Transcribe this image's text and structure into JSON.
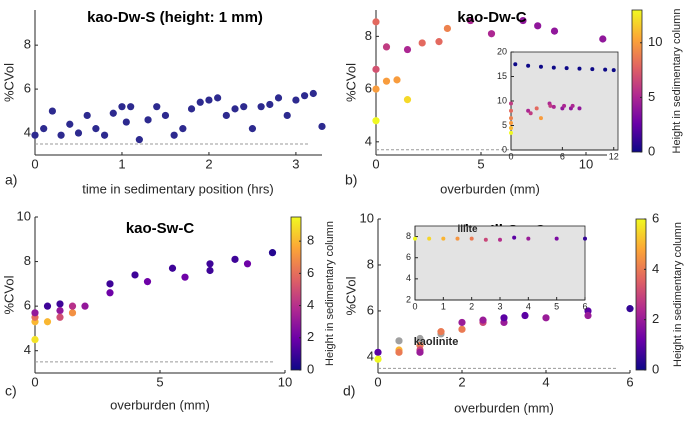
{
  "chart_data": [
    {
      "type": "scatter",
      "panel_label": "a)",
      "title": "kao-Dw-S (height: 1 mm)",
      "xlabel": "time in sedimentary position (hrs)",
      "ylabel": "%CVol",
      "xlim": [
        0,
        3.3
      ],
      "ylim": [
        3,
        9.6
      ],
      "xticks": [
        0,
        1,
        2,
        3
      ],
      "yticks": [
        4,
        6,
        8
      ],
      "reference_line": 3.5,
      "series": [
        {
          "color": "#2d2a8f",
          "x": [
            0,
            0.1,
            0.2,
            0.3,
            0.4,
            0.5,
            0.6,
            0.7,
            0.8,
            0.9,
            1.0,
            1.05,
            1.1,
            1.2,
            1.3,
            1.4,
            1.5,
            1.6,
            1.7,
            1.8,
            1.9,
            2.0,
            2.1,
            2.2,
            2.3,
            2.4,
            2.5,
            2.6,
            2.7,
            2.8,
            2.9,
            3.0,
            3.1,
            3.2,
            3.3
          ],
          "values": [
            3.9,
            4.2,
            5.0,
            3.9,
            4.4,
            4.0,
            4.8,
            4.2,
            3.9,
            4.9,
            5.2,
            4.5,
            5.2,
            3.7,
            4.6,
            5.2,
            4.8,
            3.9,
            4.2,
            5.1,
            5.4,
            5.5,
            5.6,
            4.8,
            5.1,
            5.2,
            4.2,
            5.2,
            5.3,
            5.6,
            4.8,
            5.5,
            5.7,
            5.8,
            4.3
          ]
        }
      ]
    },
    {
      "type": "scatter",
      "panel_label": "b)",
      "title": "kao-Dw-C",
      "xlabel": "overburden (mm)",
      "ylabel": "%CVol",
      "xlim": [
        0,
        11
      ],
      "ylim": [
        3.5,
        9
      ],
      "xticks": [
        0,
        5,
        10
      ],
      "yticks": [
        4,
        6,
        8
      ],
      "reference_line": 3.7,
      "colormap": [
        "#0d0887",
        "#6a00a8",
        "#b12a90",
        "#e16462",
        "#fca636",
        "#f0f921"
      ],
      "colorbar": {
        "clim": [
          0,
          13
        ],
        "ticks": [
          0,
          5,
          10
        ],
        "label": "Height in sedimentary column"
      },
      "series": [
        {
          "x": [
            0,
            0,
            0,
            0,
            0.5,
            0.5,
            1,
            1.5,
            1.5,
            2.2,
            3,
            3.4,
            4.5,
            5.5,
            7,
            7.7,
            8.5,
            10.8
          ],
          "values": [
            8.55,
            6.75,
            6.0,
            4.8,
            7.6,
            6.3,
            6.35,
            7.5,
            5.6,
            7.75,
            7.8,
            8.3,
            8.6,
            8.1,
            8.6,
            8.4,
            8.2,
            7.9
          ],
          "c": [
            8,
            7,
            10,
            13,
            6,
            10,
            10,
            5,
            12,
            8,
            8,
            9,
            5,
            5,
            4,
            4,
            4,
            4
          ]
        }
      ],
      "inset": {
        "xlim": [
          0,
          12.5
        ],
        "ylim": [
          0,
          20
        ],
        "xticks": [
          0,
          6,
          12
        ],
        "yticks": [
          0,
          5,
          10,
          15,
          20
        ],
        "x": [
          0.5,
          2,
          3.5,
          5,
          6.5,
          8,
          9.5,
          11,
          12,
          0,
          0,
          0,
          0,
          0,
          0,
          2,
          2.3,
          3,
          3.5,
          4.5,
          4.6,
          5,
          6,
          6.2,
          7,
          7.2,
          8
        ],
        "values": [
          17.5,
          17.2,
          17,
          16.8,
          16.7,
          16.6,
          16.5,
          16.4,
          16.3,
          9.5,
          8,
          6.5,
          5.5,
          4.5,
          3.5,
          8,
          7.5,
          8.5,
          6.5,
          9.5,
          9,
          8.8,
          8.5,
          9,
          8.5,
          9,
          8.5
        ],
        "c": [
          0,
          0,
          0,
          0,
          0,
          0,
          0,
          0,
          0,
          6,
          8,
          9,
          10,
          11,
          13,
          5,
          6,
          8,
          10,
          5,
          6,
          5,
          4,
          5,
          4,
          5,
          4
        ]
      }
    },
    {
      "type": "scatter",
      "panel_label": "c)",
      "title": "kao-Sw-C",
      "xlabel": "overburden (mm)",
      "ylabel": "%CVol",
      "xlim": [
        0,
        10
      ],
      "ylim": [
        3,
        10
      ],
      "xticks": [
        0,
        5,
        10
      ],
      "yticks": [
        4,
        6,
        8,
        10
      ],
      "reference_line": 3.5,
      "colormap": [
        "#0d0887",
        "#6a00a8",
        "#b12a90",
        "#e16462",
        "#fca636",
        "#f0f921"
      ],
      "colorbar": {
        "clim": [
          0,
          9.5
        ],
        "ticks": [
          0,
          2,
          4,
          6,
          8
        ],
        "label": "Height in sedimentary column"
      },
      "series": [
        {
          "x": [
            0,
            0,
            0,
            0,
            0.5,
            0.5,
            1,
            1,
            1,
            1.5,
            1.5,
            2,
            3,
            3,
            4,
            4.5,
            5.5,
            6,
            7,
            7,
            8,
            8.5,
            9.5
          ],
          "values": [
            4.5,
            5.3,
            5.5,
            5.7,
            5.3,
            6.0,
            6.1,
            5.8,
            5.5,
            5.7,
            6.0,
            6.0,
            6.6,
            7.0,
            7.4,
            7.1,
            7.7,
            7.3,
            7.6,
            7.9,
            8.1,
            7.9,
            8.4
          ],
          "c": [
            9,
            8,
            6,
            3,
            8,
            1,
            1,
            3,
            5,
            7,
            4,
            3,
            2,
            1,
            1,
            2,
            1,
            2,
            1,
            1,
            1,
            2,
            0.5
          ]
        }
      ]
    },
    {
      "type": "scatter",
      "panel_label": "d)",
      "title": "kaoIll-Sw-C",
      "xlabel": "overburden (mm)",
      "ylabel": "%CVol",
      "xlim": [
        0,
        6
      ],
      "ylim": [
        3.3,
        10
      ],
      "xticks": [
        0,
        2,
        4,
        6
      ],
      "yticks": [
        4,
        6,
        8,
        10
      ],
      "reference_line": 3.5,
      "annotations": [
        "kaolinite"
      ],
      "colormap": [
        "#0d0887",
        "#6a00a8",
        "#b12a90",
        "#e16462",
        "#fca636",
        "#f0f921"
      ],
      "colorbar": {
        "clim": [
          0,
          6
        ],
        "ticks": [
          0,
          2,
          4,
          6
        ],
        "label": "Height in sedimentary column"
      },
      "series": [
        {
          "color": "#a0a0a0",
          "x": [
            0.5,
            1,
            1.5
          ],
          "values": [
            4.7,
            4.8,
            5.0
          ]
        },
        {
          "x": [
            0,
            0,
            0.5,
            0.5,
            1,
            1,
            1,
            1.5,
            2,
            2,
            2.5,
            2.5,
            3,
            3,
            3.5,
            4,
            5,
            5,
            6
          ],
          "values": [
            4.2,
            3.9,
            4.3,
            4.2,
            4.5,
            4.3,
            4.2,
            5.1,
            5.2,
            5.5,
            5.5,
            5.6,
            5.5,
            5.7,
            5.8,
            5.7,
            6.0,
            5.8,
            6.1
          ],
          "c": [
            1,
            6,
            5,
            4,
            4,
            3,
            2,
            4,
            4,
            2,
            3,
            2,
            2,
            1,
            1,
            2,
            1,
            2,
            0.5
          ]
        }
      ],
      "inset": {
        "xlim": [
          0,
          6
        ],
        "ylim": [
          2,
          9
        ],
        "xticks": [
          0,
          1,
          2,
          3,
          4,
          5,
          6
        ],
        "yticks": [
          2,
          4,
          6,
          8
        ],
        "annotations": [
          "illite"
        ],
        "x": [
          0,
          0.5,
          1,
          1.5,
          2,
          2.5,
          3,
          3.5,
          4,
          5,
          6
        ],
        "values": [
          7.8,
          7.8,
          7.8,
          7.8,
          7.8,
          7.7,
          7.7,
          7.9,
          7.8,
          7.8,
          7.8
        ],
        "c": [
          6,
          5.5,
          5,
          4.5,
          4,
          3,
          2.5,
          1,
          2,
          1.5,
          0.5
        ]
      }
    }
  ]
}
